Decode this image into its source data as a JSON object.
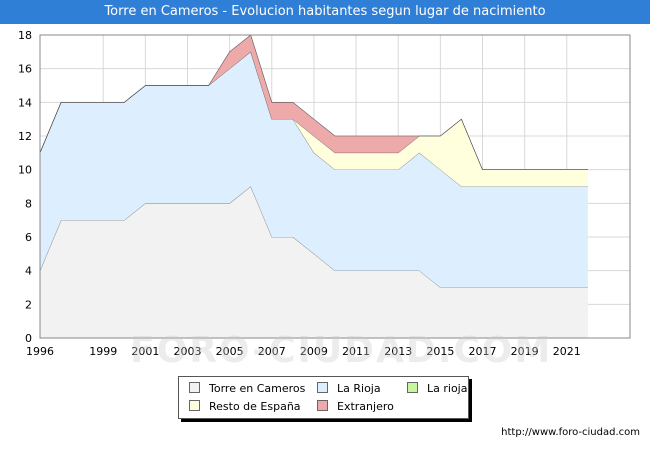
{
  "title": "Torre en Cameros - Evolucion habitantes segun lugar de nacimiento",
  "source_url": "http://www.foro-ciudad.com",
  "watermark": "FORO-CIUDAD.COM",
  "chart_data": {
    "type": "area",
    "stacked": true,
    "x": [
      1996,
      1997,
      1998,
      1999,
      2000,
      2001,
      2002,
      2003,
      2004,
      2005,
      2006,
      2007,
      2008,
      2009,
      2010,
      2011,
      2012,
      2013,
      2014,
      2015,
      2016,
      2017,
      2018,
      2019,
      2020,
      2021,
      2022
    ],
    "series": [
      {
        "name": "Torre en Cameros",
        "color": "#f2f2f2",
        "values": [
          4,
          7,
          7,
          7,
          7,
          8,
          8,
          8,
          8,
          8,
          9,
          6,
          6,
          5,
          4,
          4,
          4,
          4,
          4,
          3,
          3,
          3,
          3,
          3,
          3,
          3,
          3
        ]
      },
      {
        "name": "La Rioja",
        "color": "#ddeeff",
        "values": [
          7,
          7,
          7,
          7,
          7,
          7,
          7,
          7,
          7,
          8,
          8,
          7,
          7,
          6,
          6,
          6,
          6,
          6,
          7,
          7,
          6,
          6,
          6,
          6,
          6,
          6,
          6
        ]
      },
      {
        "name": "La rioja",
        "color": "#c8f5a0",
        "values": [
          0,
          0,
          0,
          0,
          0,
          0,
          0,
          0,
          0,
          0,
          0,
          0,
          0,
          0,
          0,
          0,
          0,
          0,
          0,
          0,
          0,
          0,
          0,
          0,
          0,
          0,
          0
        ]
      },
      {
        "name": "Resto de España",
        "color": "#ffffdd",
        "values": [
          0,
          0,
          0,
          0,
          0,
          0,
          0,
          0,
          0,
          0,
          0,
          0,
          0,
          1,
          1,
          1,
          1,
          1,
          1,
          2,
          4,
          1,
          1,
          1,
          1,
          1,
          1
        ]
      },
      {
        "name": "Extranjero",
        "color": "#eeaaaa",
        "values": [
          0,
          0,
          0,
          0,
          0,
          0,
          0,
          0,
          0,
          1,
          1,
          1,
          1,
          1,
          1,
          1,
          1,
          1,
          0,
          0,
          0,
          0,
          0,
          0,
          0,
          0,
          0
        ]
      }
    ],
    "x_tick_labels": [
      "1996",
      "1999",
      "2001",
      "2003",
      "2005",
      "2007",
      "2009",
      "2011",
      "2013",
      "2015",
      "2017",
      "2019",
      "2021"
    ],
    "y_tick_labels": [
      "0",
      "2",
      "4",
      "6",
      "8",
      "10",
      "12",
      "14",
      "16",
      "18"
    ],
    "xlim": [
      1996,
      2024
    ],
    "ylim": [
      0,
      18
    ],
    "grid": true,
    "legend_position": "bottom-center"
  }
}
